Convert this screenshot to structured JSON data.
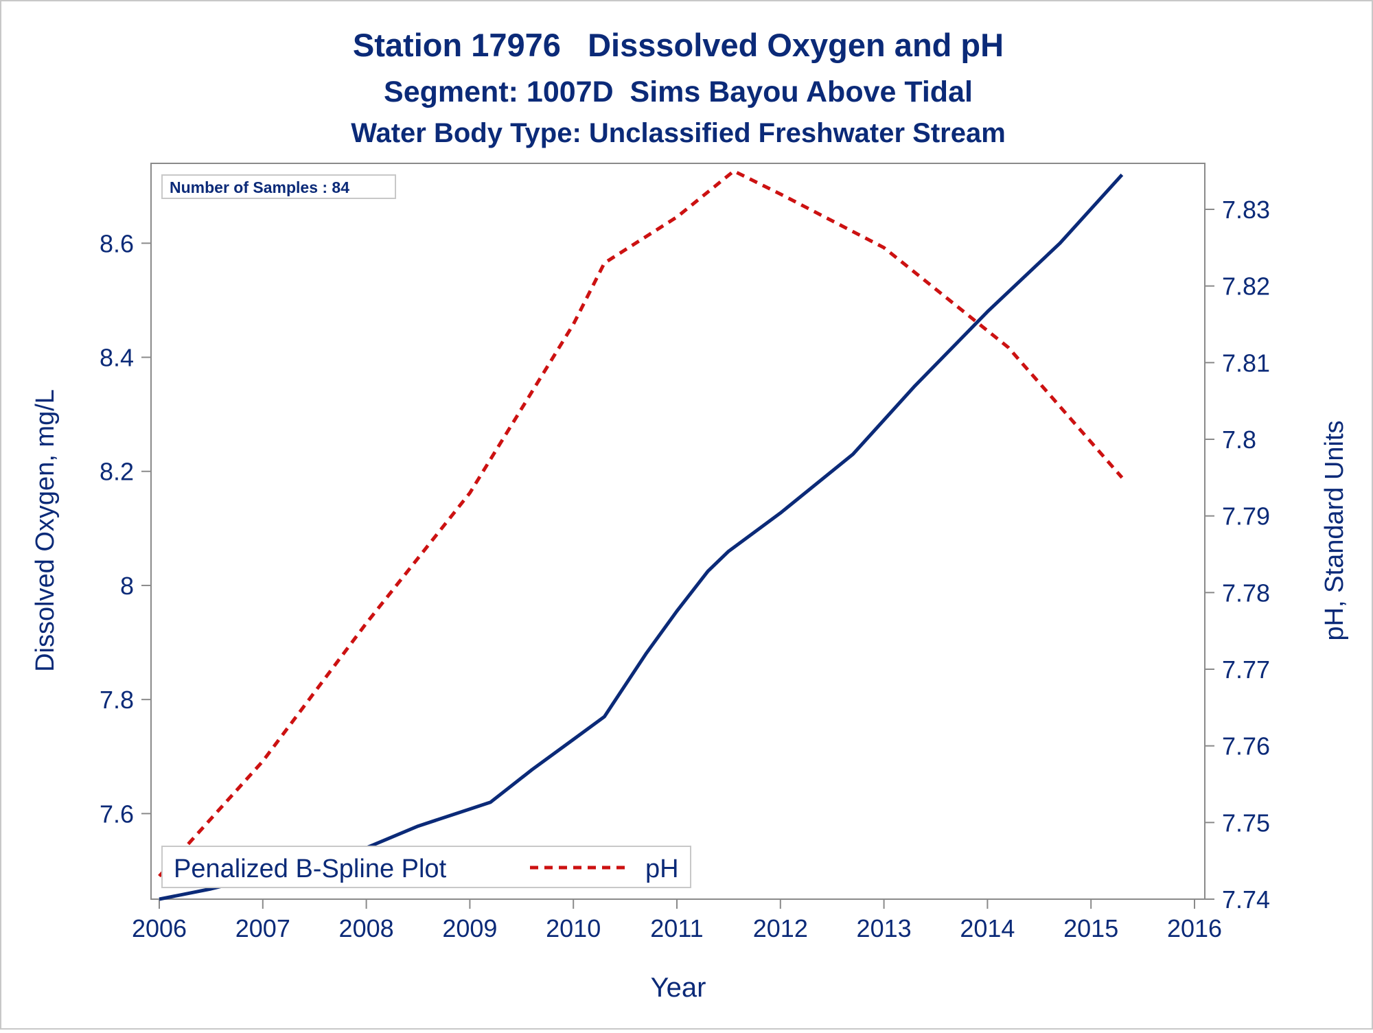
{
  "chart_data": {
    "type": "line",
    "title": "Station 17976   Disssolved Oxygen and pH",
    "subtitle": "Segment: 1007D  Sims Bayou Above Tidal",
    "subtitle2": "Water Body Type: Unclassified Freshwater Stream",
    "xlabel": "Year",
    "ylabel_left": "Dissolved Oxygen, mg/L",
    "ylabel_right": "pH, Standard Units",
    "annotation": "Number of Samples : 84",
    "xlim": [
      2006,
      2016
    ],
    "xticks": [
      "2006",
      "2007",
      "2008",
      "2009",
      "2010",
      "2011",
      "2012",
      "2013",
      "2014",
      "2015",
      "2016"
    ],
    "ylim_left": [
      7.45,
      8.74
    ],
    "yticks_left": [
      "7.6",
      "7.8",
      "8",
      "8.2",
      "8.4",
      "8.6"
    ],
    "ylim_right": [
      7.74,
      7.836
    ],
    "yticks_right": [
      "7.74",
      "7.75",
      "7.76",
      "7.77",
      "7.78",
      "7.79",
      "7.8",
      "7.81",
      "7.82",
      "7.83"
    ],
    "grid": false,
    "legend_position": "bottom-left inside",
    "series": [
      {
        "name": "Penalized B-Spline Plot",
        "axis": "left",
        "color": "#0b2a78",
        "style": "solid",
        "x": [
          2006.0,
          2006.5,
          2007.0,
          2007.5,
          2008.0,
          2008.5,
          2009.0,
          2009.2,
          2009.6,
          2010.0,
          2010.3,
          2010.7,
          2011.0,
          2011.3,
          2011.5,
          2012.0,
          2012.7,
          2013.3,
          2014.0,
          2014.7,
          2015.3
        ],
        "y": [
          7.45,
          7.468,
          7.49,
          7.513,
          7.54,
          7.578,
          7.608,
          7.62,
          7.677,
          7.73,
          7.77,
          7.88,
          7.955,
          8.025,
          8.06,
          8.127,
          8.23,
          8.35,
          8.48,
          8.6,
          8.72
        ]
      },
      {
        "name": "pH",
        "axis": "right",
        "color": "#cc1111",
        "style": "dashed",
        "x": [
          2006.0,
          2007.0,
          2008.0,
          2009.0,
          2010.0,
          2010.3,
          2011.0,
          2011.55,
          2012.0,
          2013.0,
          2014.2,
          2015.3
        ],
        "y": [
          7.743,
          7.758,
          7.776,
          7.793,
          7.815,
          7.823,
          7.829,
          7.835,
          7.832,
          7.825,
          7.812,
          7.795
        ]
      }
    ]
  }
}
